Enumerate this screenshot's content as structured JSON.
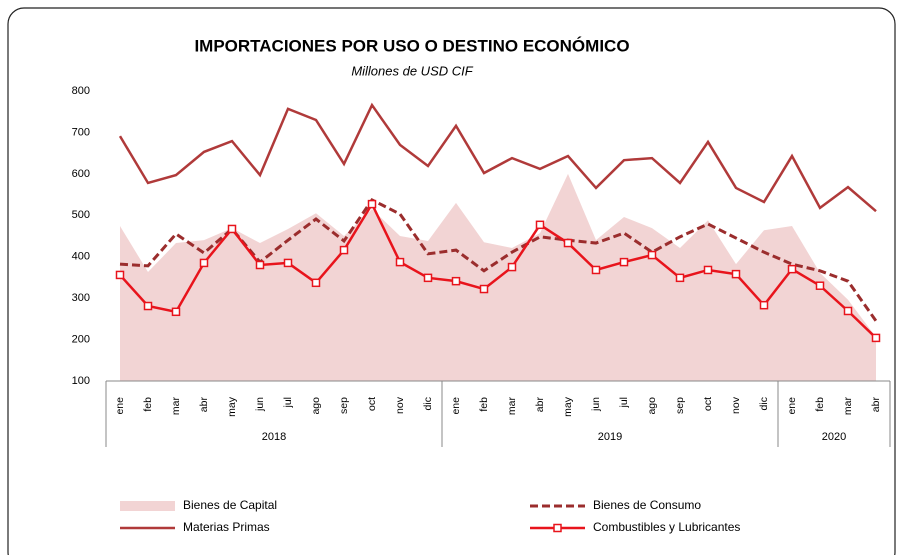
{
  "chart_data": {
    "type": "line",
    "title": "IMPORTACIONES POR USO O DESTINO ECONÓMICO",
    "subtitle": "Millones de USD CIF",
    "categories": [
      "ene",
      "feb",
      "mar",
      "abr",
      "may",
      "jun",
      "jul",
      "ago",
      "sep",
      "oct",
      "nov",
      "dic",
      "ene",
      "feb",
      "mar",
      "abr",
      "may",
      "jun",
      "jul",
      "ago",
      "sep",
      "oct",
      "nov",
      "dic",
      "ene",
      "feb",
      "mar",
      "abr"
    ],
    "year_labels": [
      "2018",
      "2019",
      "2020"
    ],
    "year_sizes": [
      12,
      12,
      4
    ],
    "ylim": [
      100,
      800
    ],
    "yticks": [
      100,
      200,
      300,
      400,
      500,
      600,
      700,
      800
    ],
    "series": [
      {
        "name": "Bienes de Capital",
        "kind": "area",
        "color": "#f2d4d4",
        "values": [
          474,
          363,
          433,
          440,
          469,
          433,
          467,
          505,
          450,
          515,
          450,
          438,
          530,
          435,
          421,
          457,
          600,
          440,
          496,
          469,
          421,
          488,
          382,
          464,
          474,
          361,
          296,
          206
        ]
      },
      {
        "name": "Bienes de Consumo",
        "kind": "dashed",
        "color": "#9b2d2d",
        "values": [
          382,
          378,
          455,
          409,
          467,
          387,
          440,
          491,
          438,
          537,
          503,
          407,
          416,
          366,
          411,
          448,
          440,
          433,
          457,
          411,
          448,
          479,
          445,
          411,
          382,
          366,
          341,
          245
        ]
      },
      {
        "name": "Materias Primas",
        "kind": "line",
        "color": "#b03a3a",
        "values": [
          691,
          578,
          597,
          653,
          679,
          597,
          757,
          730,
          624,
          766,
          670,
          619,
          716,
          602,
          638,
          612,
          643,
          566,
          633,
          638,
          578,
          677,
          566,
          532,
          643,
          518,
          568,
          510
        ]
      },
      {
        "name": "Combustibles y Lubricantes",
        "kind": "marker",
        "color": "#e8141c",
        "values": [
          356,
          281,
          267,
          385,
          467,
          380,
          385,
          337,
          416,
          527,
          387,
          349,
          341,
          322,
          375,
          477,
          433,
          368,
          387,
          404,
          349,
          368,
          358,
          283,
          370,
          330,
          269,
          204
        ]
      }
    ]
  }
}
